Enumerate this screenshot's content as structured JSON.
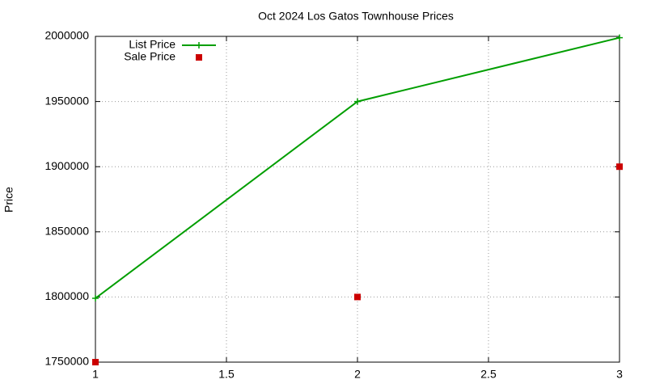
{
  "chart_data": {
    "type": "line",
    "title": "Oct 2024 Los Gatos Townhouse Prices",
    "y_label": "Price",
    "x": [
      1,
      2,
      3
    ],
    "series": [
      {
        "name": "List Price",
        "color": "#009e00",
        "style": "linespoints",
        "values": [
          1799000,
          1950000,
          1999000
        ]
      },
      {
        "name": "Sale Price",
        "color": "#cc0000",
        "style": "points",
        "values": [
          1750000,
          1800000,
          1900000
        ]
      }
    ],
    "xlim": [
      1,
      3
    ],
    "xticks": [
      1,
      1.5,
      2,
      2.5,
      3
    ],
    "ylim": [
      1750000,
      2000000
    ],
    "yticks": [
      1750000,
      1800000,
      1850000,
      1900000,
      1950000,
      2000000
    ],
    "grid": true,
    "legend": "top-left"
  }
}
